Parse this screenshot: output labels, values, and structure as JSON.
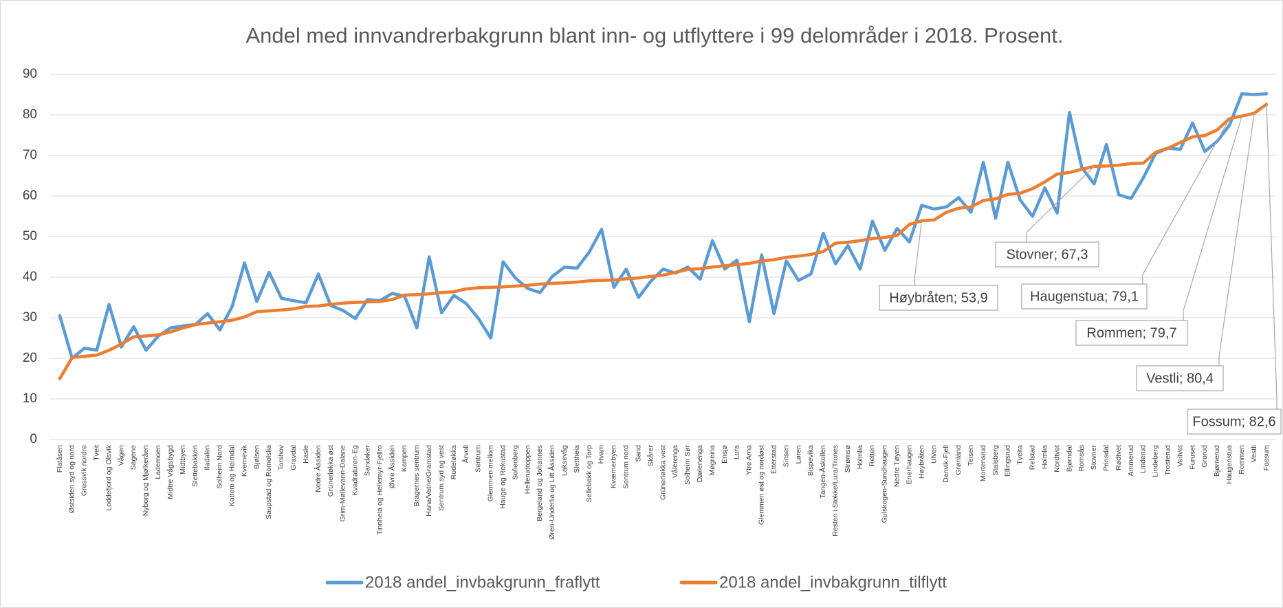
{
  "chart_data": {
    "type": "line",
    "title": "Andel med innvandrerbakgrunn blant inn- og utflyttere i 99 delområder i 2018. Prosent.",
    "categories": [
      "Flatåsen",
      "Østsiden syd og nord",
      "Gressvik nordre",
      "Tveit",
      "Loddefjord og Olsvik",
      "Vågen",
      "Sagene",
      "Nyborg og Mjølkeråen",
      "Lademoen",
      "Midtre Vågsbygd",
      "Midtbyen",
      "Sletteb​akken",
      "Iladalen",
      "Solheim Nord",
      "Kattem og Heimdal",
      "Kvernevik",
      "Bjølsen",
      "Saupstad og Romolslia",
      "Torshov",
      "Gravdal",
      "Hasle",
      "Nedre Åssiden",
      "Grünerløkka øst",
      "Grim-Møllevann-Dalane",
      "Kvadraturen-Eg",
      "Sandaker",
      "Tinnheia og Hellemyr-Fjellro",
      "Øvre Åssiden",
      "Kampen",
      "Bragernes sentrum",
      "Hana/Vatne/Gramstad",
      "Sentrum syd og vest",
      "Rodeløkka",
      "Årvoll",
      "Sentrum",
      "Glemmen mellom",
      "Hauge og Rekustad",
      "Sofienberg",
      "Hellerudtoppen",
      "Bergeland og Johannes",
      "Øren-Underlia og Litt Åssiden",
      "Laksevåg",
      "Slettheia",
      "Sellebakk og Torp",
      "Hvam",
      "Kværnerbyen",
      "Sentrum nord",
      "Sand",
      "Skårer",
      "Grünerløkka vest",
      "Vålerenga",
      "Solheim Sør",
      "Dælenenga",
      "Møgreina",
      "Ensjø",
      "Lura",
      "Ytre Arna",
      "Glemmen øst og nordøst",
      "Etterstad",
      "Sinsen",
      "Løren",
      "Bispevika",
      "Tangen-Åskollen",
      "Resten i Stokke/Lura/Trones",
      "Strømsø",
      "Holmlia",
      "Retten",
      "Gulskogen-Sundhaugen",
      "Nedre Tøyen",
      "Enerhaugen",
      "Høybråten",
      "Ulven",
      "Danvik-Fjell",
      "Grønland",
      "Teisen",
      "Mortensrud",
      "Stalsberg",
      "Ellingsrud",
      "Tveita",
      "Refstad",
      "Holmlia",
      "Nordtvet",
      "Bjørndal",
      "Romsås",
      "Stovner",
      "Prinsdal",
      "Rødtvet",
      "Ammerud",
      "Linderud",
      "Lindeberg",
      "Trosterud",
      "Veitvet",
      "Furuset",
      "Grorud",
      "Bjørnerud",
      "Haugenstua",
      "Rommen",
      "Vestli",
      "Fossum"
    ],
    "series": [
      {
        "name": "2018 andel_invbakgrunn_fraflytt",
        "color": "#5b9bd5",
        "values": [
          30.5,
          20,
          22.5,
          22,
          33.3,
          22.8,
          27.8,
          22,
          25.5,
          27.5,
          28,
          28.3,
          31,
          27,
          32.8,
          43.5,
          34,
          41.2,
          34.8,
          34.2,
          33.7,
          40.8,
          33,
          31.8,
          29.8,
          34.5,
          34.2,
          36,
          35.3,
          27.5,
          45,
          31.2,
          35.5,
          33.5,
          29.8,
          25,
          43.8,
          39.8,
          37.2,
          36.2,
          40.2,
          42.5,
          42.2,
          46.2,
          51.8,
          37.5,
          42,
          35,
          39,
          42,
          41,
          42.5,
          39.5,
          49,
          42,
          44.2,
          29,
          45.5,
          31,
          44,
          39.2,
          40.8,
          50.8,
          43.3,
          47.8,
          42,
          53.8,
          46.6,
          52,
          48.7,
          57.7,
          56.8,
          57.3,
          59.6,
          56,
          68.3,
          54.5,
          68.3,
          59,
          55,
          62,
          55.8,
          80.6,
          67,
          63,
          72.7,
          60.3,
          59.4,
          64.5,
          70.5,
          71.8,
          71.5,
          78,
          71,
          73.5,
          77.5,
          85.2,
          85,
          85.2
        ]
      },
      {
        "name": "2018 andel_invbakgrunn_tilflytt",
        "color": "#ed7d31",
        "values": [
          15,
          20.2,
          20.5,
          20.8,
          22,
          23.5,
          25.3,
          25.5,
          25.8,
          26.5,
          27.5,
          28.3,
          28.7,
          29,
          29.4,
          30.2,
          31.5,
          31.7,
          31.9,
          32.2,
          32.8,
          32.9,
          33.3,
          33.6,
          33.8,
          33.9,
          34,
          34.5,
          35.6,
          35.7,
          35.9,
          36.2,
          36.4,
          37.1,
          37.4,
          37.5,
          37.6,
          37.8,
          38,
          38.3,
          38.5,
          38.6,
          38.8,
          39.1,
          39.2,
          39.3,
          39.6,
          39.8,
          40.2,
          40.5,
          41.2,
          41.9,
          42.1,
          42.5,
          42.8,
          43.1,
          43.4,
          44,
          44.3,
          44.9,
          45.2,
          45.6,
          46.3,
          48.4,
          48.6,
          49,
          49.5,
          49.8,
          50.3,
          53,
          53.9,
          54.1,
          56,
          57,
          57.3,
          58.9,
          59.3,
          60.4,
          60.7,
          61.8,
          63.5,
          65.4,
          65.8,
          66.6,
          67.3,
          67.4,
          67.6,
          68,
          68.1,
          70.8,
          71.8,
          73.2,
          74.6,
          74.9,
          76.3,
          79.1,
          79.7,
          80.4,
          82.6
        ],
        "value_labels": [
          null,
          null,
          null,
          null,
          null,
          null,
          null,
          null,
          null,
          null,
          null,
          null,
          null,
          null,
          null,
          null,
          null,
          null,
          null,
          null,
          null,
          null,
          null,
          null,
          null,
          null,
          null,
          null,
          null,
          null,
          null,
          null,
          null,
          null,
          null,
          null,
          null,
          null,
          null,
          null,
          null,
          null,
          null,
          null,
          null,
          null,
          null,
          null,
          null,
          null,
          null,
          null,
          null,
          null,
          null,
          null,
          null,
          null,
          null,
          null,
          null,
          null,
          null,
          null,
          null,
          null,
          null,
          null,
          null,
          null,
          "Høybråten; 53,9",
          null,
          null,
          null,
          null,
          null,
          null,
          null,
          null,
          null,
          null,
          null,
          null,
          null,
          "Stovner; 67,3",
          null,
          null,
          null,
          null,
          null,
          null,
          null,
          null,
          null,
          null,
          "Haugenstua; 79,1",
          "Rommen; 79,7",
          "Vestli; 80,4",
          "Fossum; 82,6"
        ]
      }
    ],
    "ylim": [
      0,
      90
    ],
    "yticks": [
      0,
      10,
      20,
      30,
      40,
      50,
      60,
      70,
      80,
      90
    ],
    "grid": true,
    "legend": "bottom"
  }
}
